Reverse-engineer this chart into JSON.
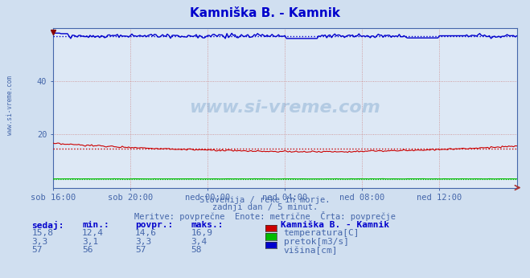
{
  "title": "Kamniška B. - Kamnik",
  "bg_color": "#d0dff0",
  "plot_bg_color": "#dde8f5",
  "title_color": "#0000cc",
  "axis_label_color": "#4466aa",
  "grid_color": "#cc8888",
  "xlim": [
    0,
    288
  ],
  "ylim": [
    0,
    60
  ],
  "ytick_vals": [
    20,
    40
  ],
  "xtick_labels": [
    "sob 16:00",
    "sob 20:00",
    "ned 00:00",
    "ned 04:00",
    "ned 08:00",
    "ned 12:00"
  ],
  "xtick_positions": [
    0,
    48,
    96,
    144,
    192,
    240
  ],
  "temp_color": "#cc0000",
  "pretok_color": "#00bb00",
  "visina_color": "#0000cc",
  "temp_avg": 14.6,
  "pretok_avg": 3.3,
  "visina_avg": 57,
  "temp_min": 12.4,
  "temp_max": 16.9,
  "pretok_min": 3.1,
  "pretok_max": 3.4,
  "visina_min": 56,
  "visina_max": 58,
  "temp_sedaj": "15,8",
  "pretok_sedaj": "3,3",
  "visina_sedaj": "57",
  "temp_min_str": "12,4",
  "pretok_min_str": "3,1",
  "visina_min_str": "56",
  "temp_avg_str": "14,6",
  "pretok_avg_str": "3,3",
  "visina_avg_str": "57",
  "temp_max_str": "16,9",
  "pretok_max_str": "3,4",
  "visina_max_str": "58",
  "subtitle1": "Slovenija / reke in morje.",
  "subtitle2": "zadnji dan / 5 minut.",
  "subtitle3": "Meritve: povprečne  Enote: metrične  Črta: povprečje",
  "legend_title": "Kamniška B. - Kamnik",
  "legend_items": [
    "temperatura[C]",
    "pretok[m3/s]",
    "višina[cm]"
  ],
  "legend_colors": [
    "#cc0000",
    "#00bb00",
    "#0000cc"
  ],
  "watermark": "www.si-vreme.com",
  "left_label": "www.si-vreme.com"
}
